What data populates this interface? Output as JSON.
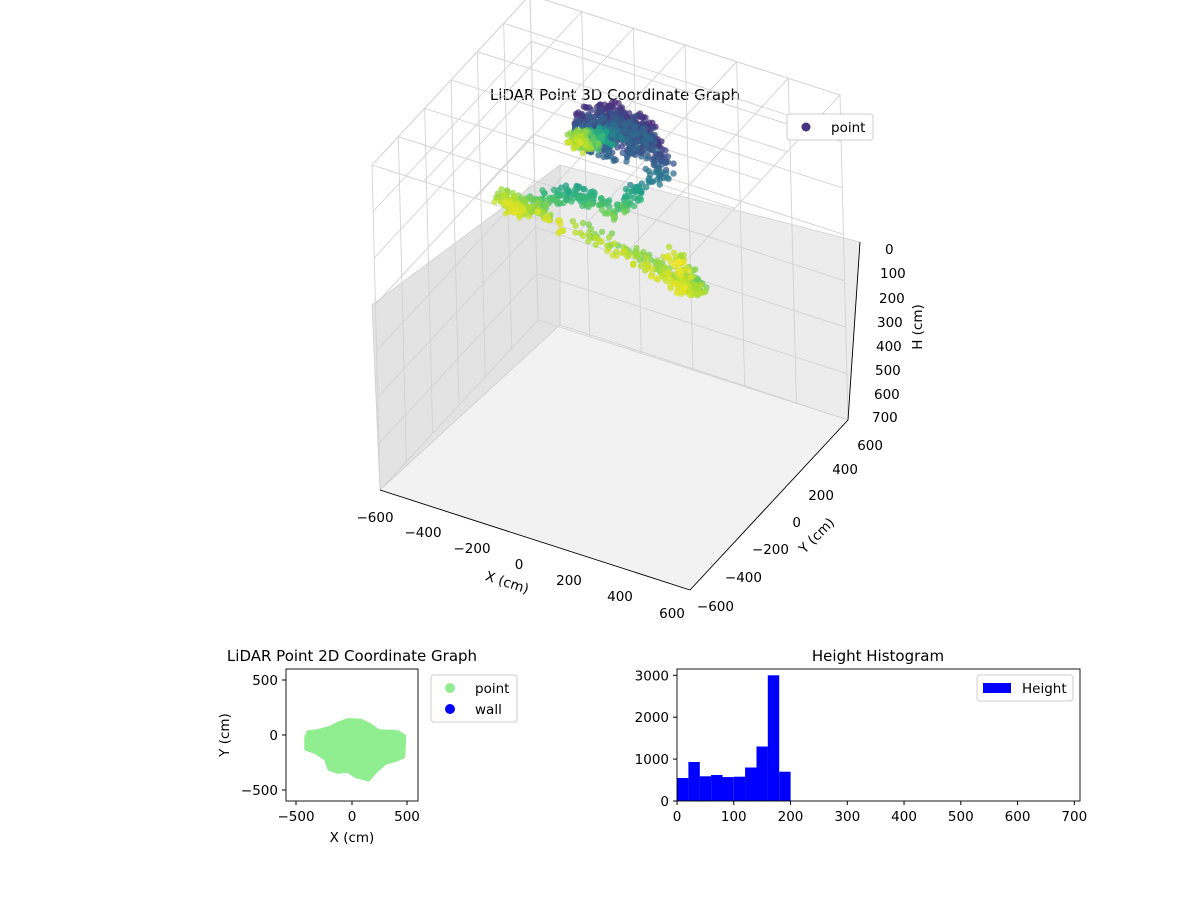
{
  "chart_data": [
    {
      "type": "scatter",
      "projection": "3d",
      "title": "LiDAR Point 3D Coordinate Graph",
      "xlabel": "X (cm)",
      "ylabel": "Y (cm)",
      "zlabel": "H (cm)",
      "xlim": [
        -600,
        600
      ],
      "ylim": [
        -600,
        600
      ],
      "zlim": [
        700,
        0
      ],
      "zinverted": true,
      "x_ticks": [
        "−600",
        "−400",
        "−200",
        "0",
        "200",
        "400",
        "600"
      ],
      "y_ticks": [
        "−600",
        "−400",
        "−200",
        "0",
        "200",
        "400",
        "600"
      ],
      "z_ticks": [
        "0",
        "100",
        "200",
        "300",
        "400",
        "500",
        "600",
        "700"
      ],
      "grid": true,
      "colormap": "viridis",
      "legend": {
        "position": "top-right",
        "entries": [
          {
            "label": "point",
            "color": "#46337e"
          }
        ]
      },
      "series": [
        {
          "name": "point",
          "description_points": [
            {
              "x": -300,
              "y": 350,
              "h": 180
            },
            {
              "x": -250,
              "y": 300,
              "h": 160
            },
            {
              "x": -150,
              "y": 250,
              "h": 120
            },
            {
              "x": 0,
              "y": 150,
              "h": 40
            },
            {
              "x": 100,
              "y": 100,
              "h": 20
            },
            {
              "x": 200,
              "y": 50,
              "h": 60
            },
            {
              "x": 50,
              "y": -50,
              "h": 150
            },
            {
              "x": -100,
              "y": -100,
              "h": 120
            },
            {
              "x": -250,
              "y": -150,
              "h": 170
            },
            {
              "x": -350,
              "y": -100,
              "h": 180
            },
            {
              "x": 200,
              "y": -200,
              "h": 170
            },
            {
              "x": 400,
              "y": -250,
              "h": 180
            },
            {
              "x": 500,
              "y": -300,
              "h": 160
            },
            {
              "x": 300,
              "y": -100,
              "h": 190
            }
          ]
        }
      ]
    },
    {
      "type": "scatter",
      "title": "LiDAR Point 2D Coordinate Graph",
      "xlabel": "X (cm)",
      "ylabel": "Y (cm)",
      "xlim": [
        -600,
        600
      ],
      "ylim": [
        -600,
        600
      ],
      "x_ticks": [
        "−500",
        "0",
        "500"
      ],
      "y_ticks": [
        "500",
        "0",
        "−500"
      ],
      "legend": {
        "position": "right",
        "entries": [
          {
            "label": "point",
            "color": "#90ee90"
          },
          {
            "label": "wall",
            "color": "#0000ff"
          }
        ]
      },
      "series": [
        {
          "name": "point",
          "color": "#90ee90",
          "outline": [
            {
              "x": -420,
              "y": -20
            },
            {
              "x": -400,
              "y": 30
            },
            {
              "x": -310,
              "y": 40
            },
            {
              "x": -200,
              "y": 70
            },
            {
              "x": -120,
              "y": 110
            },
            {
              "x": -40,
              "y": 140
            },
            {
              "x": 80,
              "y": 135
            },
            {
              "x": 170,
              "y": 90
            },
            {
              "x": 240,
              "y": 40
            },
            {
              "x": 420,
              "y": 30
            },
            {
              "x": 480,
              "y": -10
            },
            {
              "x": 470,
              "y": -200
            },
            {
              "x": 400,
              "y": -230
            },
            {
              "x": 300,
              "y": -260
            },
            {
              "x": 220,
              "y": -330
            },
            {
              "x": 150,
              "y": -410
            },
            {
              "x": 40,
              "y": -380
            },
            {
              "x": -40,
              "y": -330
            },
            {
              "x": -130,
              "y": -340
            },
            {
              "x": -210,
              "y": -310
            },
            {
              "x": -240,
              "y": -220
            },
            {
              "x": -330,
              "y": -160
            },
            {
              "x": -420,
              "y": -130
            }
          ]
        },
        {
          "name": "wall",
          "color": "#0000ff",
          "outline": []
        }
      ]
    },
    {
      "type": "bar",
      "subtype": "histogram",
      "title": "Height Histogram",
      "xlabel": "",
      "ylabel": "",
      "xlim": [
        0,
        710
      ],
      "ylim": [
        0,
        3150
      ],
      "x_ticks": [
        "0",
        "100",
        "200",
        "300",
        "400",
        "500",
        "600",
        "700"
      ],
      "y_ticks": [
        "0",
        "1000",
        "2000",
        "3000"
      ],
      "bin_width": 20,
      "legend": {
        "position": "top-right",
        "entries": [
          {
            "label": "Height",
            "color": "#0000ff"
          }
        ]
      },
      "series": [
        {
          "name": "Height",
          "color": "#0000ff",
          "bins": [
            0,
            20,
            40,
            60,
            80,
            100,
            120,
            140,
            160,
            180
          ],
          "values": [
            550,
            930,
            590,
            620,
            570,
            580,
            800,
            1300,
            3000,
            700
          ]
        }
      ]
    }
  ]
}
